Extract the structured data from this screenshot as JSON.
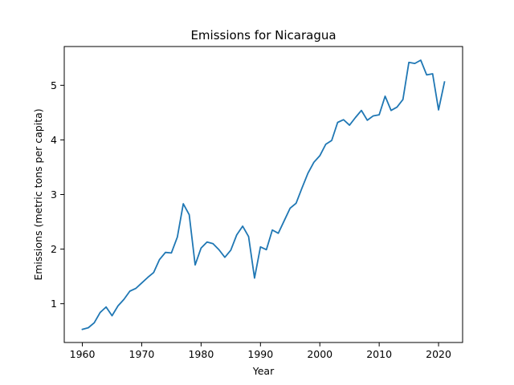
{
  "chart_data": {
    "type": "line",
    "title": "Emissions for Nicaragua",
    "xlabel": "Year",
    "ylabel": "Emissions (metric tons per capita)",
    "xlim": [
      1956.95,
      2024.05
    ],
    "ylim": [
      0.29,
      5.71
    ],
    "xticks": [
      1960,
      1970,
      1980,
      1990,
      2000,
      2010,
      2020
    ],
    "yticks": [
      1,
      2,
      3,
      4,
      5
    ],
    "grid": false,
    "color": "#1f77b4",
    "series": [
      {
        "x": [
          1960,
          1961,
          1962,
          1963,
          1964,
          1965,
          1966,
          1967,
          1968,
          1969,
          1970,
          1971,
          1972,
          1973,
          1974,
          1975,
          1976,
          1977,
          1978,
          1979,
          1980,
          1981,
          1982,
          1983,
          1984,
          1985,
          1986,
          1987,
          1988,
          1989,
          1990,
          1991,
          1992,
          1993,
          1994,
          1995,
          1996,
          1997,
          1998,
          1999,
          2000,
          2001,
          2002,
          2003,
          2004,
          2005,
          2006,
          2007,
          2008,
          2009,
          2010,
          2011,
          2012,
          2013,
          2014,
          2015,
          2016,
          2017,
          2018,
          2019,
          2020,
          2021
        ],
        "values": [
          0.53,
          0.56,
          0.65,
          0.84,
          0.94,
          0.78,
          0.96,
          1.08,
          1.23,
          1.28,
          1.38,
          1.48,
          1.57,
          1.81,
          1.94,
          1.93,
          2.22,
          2.83,
          2.63,
          1.71,
          2.02,
          2.13,
          2.1,
          1.99,
          1.85,
          1.98,
          2.26,
          2.42,
          2.23,
          1.47,
          2.04,
          1.99,
          2.35,
          2.29,
          2.52,
          2.75,
          2.84,
          3.12,
          3.39,
          3.59,
          3.71,
          3.92,
          3.99,
          4.32,
          4.37,
          4.27,
          4.41,
          4.54,
          4.36,
          4.44,
          4.46,
          4.8,
          4.54,
          4.6,
          4.74,
          5.42,
          5.4,
          5.46,
          5.19,
          5.21,
          4.55,
          5.06
        ]
      }
    ]
  }
}
